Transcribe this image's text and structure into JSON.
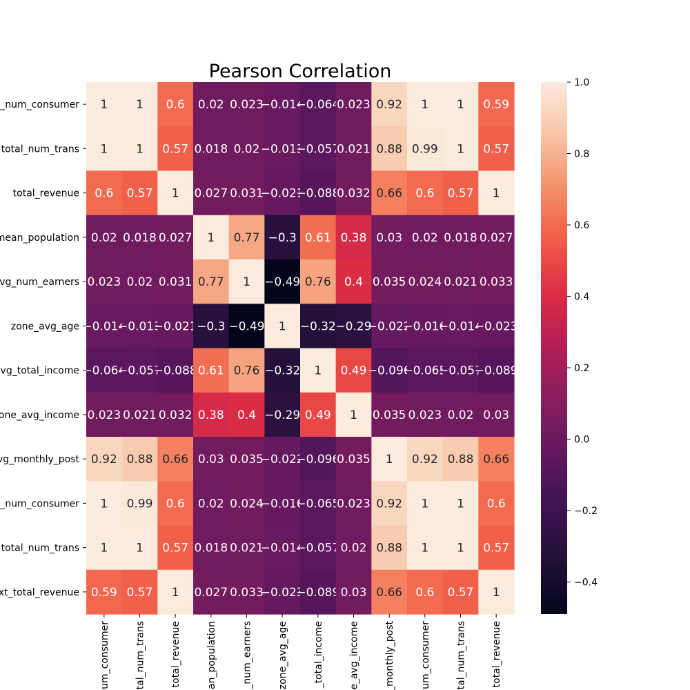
{
  "chart_data": {
    "type": "heatmap",
    "title": "Pearson Correlation",
    "xlabel": "",
    "ylabel": "",
    "row_labels": [
      "_num_consumer",
      "total_num_trans",
      "total_revenue",
      "mean_population",
      "vg_num_earners",
      "zone_avg_age",
      "vg_total_income",
      "one_avg_income",
      "vg_monthly_post",
      "_num_consumer",
      "total_num_trans",
      "xt_total_revenue"
    ],
    "col_labels": [
      "um_consumer",
      "tal_num_trans",
      "total_revenue",
      "an_population",
      "_num_earners",
      "zone_avg_age",
      "_total_income",
      "e_avg_income",
      "_monthly_post",
      "um_consumer",
      "tal_num_trans",
      "total_revenue"
    ],
    "values": [
      [
        1,
        1,
        0.6,
        0.02,
        0.023,
        -0.014,
        -0.064,
        0.023,
        0.92,
        1,
        1,
        0.59
      ],
      [
        1,
        1,
        0.57,
        0.018,
        0.02,
        -0.013,
        -0.057,
        0.021,
        0.88,
        0.99,
        1,
        0.57
      ],
      [
        0.6,
        0.57,
        1,
        0.027,
        0.031,
        -0.021,
        -0.088,
        0.032,
        0.66,
        0.6,
        0.57,
        1
      ],
      [
        0.02,
        0.018,
        0.027,
        1,
        0.77,
        -0.3,
        0.61,
        0.38,
        0.03,
        0.02,
        0.018,
        0.027
      ],
      [
        0.023,
        0.02,
        0.031,
        0.77,
        1,
        -0.49,
        0.76,
        0.4,
        0.035,
        0.024,
        0.021,
        0.033
      ],
      [
        -0.014,
        -0.013,
        -0.021,
        -0.3,
        -0.49,
        1,
        -0.32,
        -0.29,
        -0.022,
        -0.016,
        -0.014,
        -0.023
      ],
      [
        -0.064,
        -0.057,
        -0.088,
        0.61,
        0.76,
        -0.32,
        1,
        0.49,
        -0.096,
        -0.065,
        -0.057,
        -0.089
      ],
      [
        0.023,
        0.021,
        0.032,
        0.38,
        0.4,
        -0.29,
        0.49,
        1,
        0.035,
        0.023,
        0.02,
        0.03
      ],
      [
        0.92,
        0.88,
        0.66,
        0.03,
        0.035,
        -0.022,
        -0.096,
        0.035,
        1,
        0.92,
        0.88,
        0.66
      ],
      [
        1,
        0.99,
        0.6,
        0.02,
        0.024,
        -0.016,
        -0.065,
        0.023,
        0.92,
        1,
        1,
        0.6
      ],
      [
        1,
        1,
        0.57,
        0.018,
        0.021,
        -0.014,
        -0.057,
        0.02,
        0.88,
        1,
        1,
        0.57
      ],
      [
        0.59,
        0.57,
        1,
        0.027,
        0.033,
        -0.023,
        -0.089,
        0.03,
        0.66,
        0.6,
        0.57,
        1
      ]
    ],
    "colorbar": {
      "min": -0.49,
      "max": 1.0,
      "ticks": [
        1.0,
        0.8,
        0.6,
        0.4,
        0.2,
        0.0,
        -0.2,
        -0.4
      ],
      "tick_labels": [
        "1.0",
        "0.8",
        "0.6",
        "0.4",
        "0.2",
        "0.0",
        "−0.2",
        "−0.4"
      ],
      "colormap": "rocket"
    },
    "grid": false,
    "legend": "colorbar-right"
  }
}
